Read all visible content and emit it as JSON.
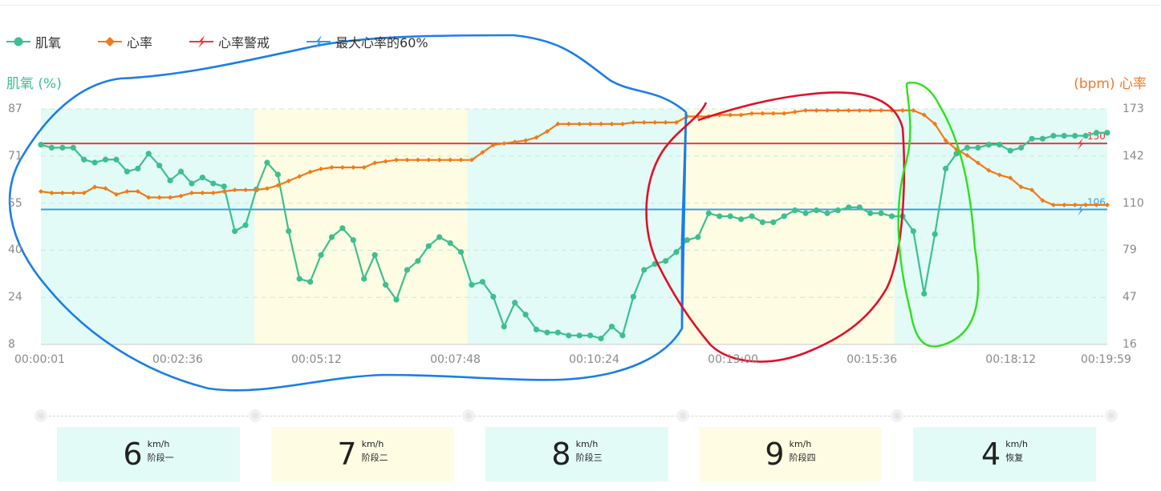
{
  "chart_data": {
    "type": "line",
    "legend": [
      {
        "name": "肌氧",
        "color": "#3dbf8f",
        "marker": "circle"
      },
      {
        "name": "心率",
        "color": "#f07a1a",
        "marker": "diamond"
      },
      {
        "name": "心率警戒",
        "color": "#e83a3a",
        "marker": "bolt"
      },
      {
        "name": "最大心率的60%",
        "color": "#3a9de0",
        "marker": "bolt"
      }
    ],
    "left_axis_title": "肌氧 (%)",
    "right_axis_title": "(bpm) 心率",
    "left_ticks": [
      "87",
      "71",
      "55",
      "40",
      "24",
      "8"
    ],
    "right_ticks": [
      "173",
      "142",
      "110",
      "79",
      "47",
      "16"
    ],
    "left_range": [
      8,
      87
    ],
    "right_range": [
      16,
      173
    ],
    "x_ticks": [
      "00:00:01",
      "00:02:36",
      "00:05:12",
      "00:07:48",
      "00:10:24",
      "00:13:00",
      "00:15:36",
      "00:18:12",
      "00:19:59"
    ],
    "x_tick_seconds": [
      1,
      156,
      312,
      468,
      624,
      780,
      936,
      1092,
      1199
    ],
    "x_range_seconds": [
      1,
      1199
    ],
    "stage_bands_seconds": [
      [
        1,
        241
      ],
      [
        241,
        480
      ],
      [
        480,
        720
      ],
      [
        720,
        960
      ],
      [
        960,
        1199
      ]
    ],
    "stage_band_colors": [
      "#e2fbf6",
      "#fefde3",
      "#e2fbf6",
      "#fefde3",
      "#e2fbf6"
    ],
    "reference_lines": [
      {
        "name": "心率警戒",
        "value": 150,
        "label": "150",
        "color": "#e83a3a"
      },
      {
        "name": "最大心率的60%",
        "value": 106,
        "label": "106",
        "color": "#3a9de0"
      }
    ],
    "series": [
      {
        "name": "肌氧",
        "axis": "left",
        "color": "#3dbf8f",
        "values": [
          75,
          74,
          74,
          74,
          70,
          69,
          70,
          70,
          66,
          67,
          72,
          68,
          63,
          66,
          62,
          64,
          62,
          61,
          46,
          48,
          60,
          69,
          65,
          46,
          30,
          29,
          38,
          44,
          47,
          43,
          30,
          38,
          28,
          23,
          33,
          36,
          41,
          44,
          42,
          39,
          28,
          29,
          24,
          14,
          22,
          18,
          13,
          12,
          12,
          11,
          11,
          11,
          10,
          14,
          11,
          24,
          33,
          35,
          36,
          39,
          43,
          44,
          52,
          51,
          51,
          50,
          51,
          49,
          49,
          51,
          53,
          52,
          53,
          52,
          53,
          54,
          54,
          52,
          52,
          51,
          51,
          46,
          25,
          45,
          67,
          72,
          74,
          74,
          75,
          75,
          73,
          74,
          77,
          77,
          78,
          78,
          78,
          78,
          79,
          79
        ]
      },
      {
        "name": "心率",
        "axis": "right",
        "color": "#f07a1a",
        "values": [
          118,
          117,
          117,
          117,
          117,
          121,
          120,
          116,
          118,
          118,
          114,
          114,
          114,
          115,
          117,
          117,
          117,
          118,
          119,
          119,
          119,
          120,
          122,
          125,
          128,
          131,
          133,
          134,
          134,
          134,
          134,
          137,
          138,
          139,
          139,
          139,
          139,
          139,
          139,
          139,
          139,
          144,
          149,
          150,
          151,
          152,
          154,
          158,
          163,
          163,
          163,
          163,
          163,
          163,
          163,
          164,
          164,
          164,
          164,
          164,
          168,
          168,
          168,
          169,
          169,
          169,
          170,
          170,
          170,
          170,
          171,
          172,
          172,
          172,
          172,
          172,
          172,
          172,
          172,
          172,
          172,
          172,
          169,
          163,
          152,
          146,
          142,
          137,
          132,
          129,
          127,
          121,
          119,
          112,
          109,
          109,
          109,
          109,
          109,
          109
        ]
      }
    ]
  },
  "stages": [
    {
      "speed": "6",
      "unit": "km/h",
      "name": "阶段一",
      "color": "#e2fbf6"
    },
    {
      "speed": "7",
      "unit": "km/h",
      "name": "阶段二",
      "color": "#fefde3"
    },
    {
      "speed": "8",
      "unit": "km/h",
      "name": "阶段三",
      "color": "#e2fbf6"
    },
    {
      "speed": "9",
      "unit": "km/h",
      "name": "阶段四",
      "color": "#fefde3"
    },
    {
      "speed": "4",
      "unit": "km/h",
      "name": "恢复",
      "color": "#e2fbf6"
    }
  ],
  "annotation_colors": {
    "blue": "#1a7fe6",
    "red": "#e0102a",
    "green": "#2fe01a"
  }
}
